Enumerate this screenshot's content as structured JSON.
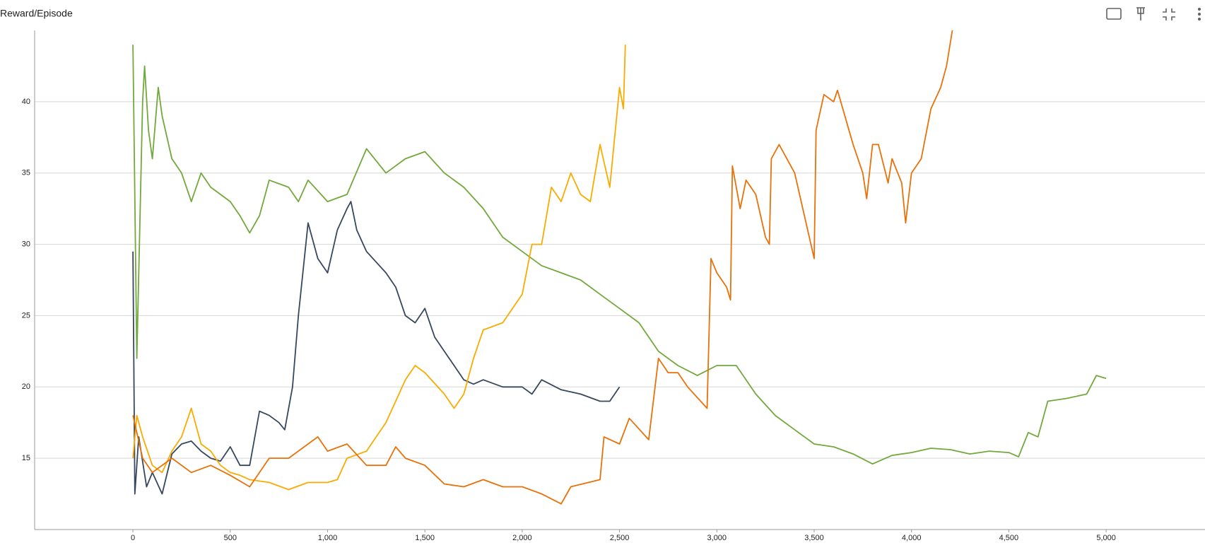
{
  "chart_data": {
    "type": "line",
    "title": "Reward/Episode",
    "xlim": [
      -505,
      5508
    ],
    "ylim": [
      10,
      45
    ],
    "xticks": [
      0,
      500,
      {
        "value": 1000,
        "label": "1,000"
      },
      {
        "value": 1500,
        "label": "1,500"
      },
      {
        "value": 2000,
        "label": "2,000"
      },
      {
        "value": 2500,
        "label": "2,500"
      },
      {
        "value": 3000,
        "label": "3,000"
      },
      {
        "value": 3500,
        "label": "3,500"
      },
      {
        "value": 4000,
        "label": "4,000"
      },
      {
        "value": 4500,
        "label": "4,500"
      },
      {
        "value": 5000,
        "label": "5,000"
      }
    ],
    "yticks": [
      15,
      20,
      25,
      30,
      35,
      40
    ],
    "grid": true,
    "series": [
      {
        "color": "#72a83c",
        "x": [
          0,
          20,
          50,
          60,
          80,
          100,
          130,
          150,
          200,
          250,
          300,
          350,
          400,
          500,
          550,
          600,
          650,
          700,
          800,
          850,
          900,
          1000,
          1100,
          1200,
          1300,
          1400,
          1500,
          1600,
          1700,
          1800,
          1900,
          2000,
          2100,
          2200,
          2300,
          2400,
          2500,
          2600,
          2700,
          2800,
          2900,
          3000,
          3100,
          3200,
          3300,
          3400,
          3500,
          3600,
          3700,
          3800,
          3900,
          4000,
          4100,
          4200,
          4300,
          4400,
          4500,
          4550,
          4600,
          4650,
          4700,
          4800,
          4900,
          4950,
          5000
        ],
        "values": [
          44,
          22,
          40,
          42.5,
          38,
          36,
          41,
          39,
          36,
          35,
          33,
          35,
          34,
          33,
          32,
          30.8,
          32,
          34.5,
          34,
          33,
          34.5,
          33,
          33.5,
          36.7,
          35,
          36,
          36.5,
          35,
          34,
          32.5,
          30.5,
          29.5,
          28.5,
          28,
          27.5,
          26.5,
          25.5,
          24.5,
          22.5,
          21.5,
          20.8,
          21.5,
          21.5,
          19.5,
          18,
          17,
          16,
          15.8,
          15.3,
          14.6,
          15.2,
          15.4,
          15.7,
          15.6,
          15.3,
          15.5,
          15.4,
          15.1,
          16.8,
          16.5,
          19,
          19.2,
          19.5,
          20.8,
          20.6
        ]
      },
      {
        "color": "#37475e",
        "x": [
          0,
          10,
          30,
          70,
          100,
          150,
          200,
          250,
          300,
          350,
          400,
          450,
          500,
          550,
          600,
          650,
          700,
          750,
          780,
          820,
          850,
          900,
          950,
          1000,
          1050,
          1100,
          1120,
          1150,
          1200,
          1300,
          1350,
          1400,
          1450,
          1500,
          1550,
          1600,
          1650,
          1700,
          1750,
          1800,
          1900,
          2000,
          2050,
          2100,
          2200,
          2300,
          2400,
          2450,
          2500
        ],
        "values": [
          29.5,
          12.5,
          16.5,
          13,
          14,
          12.5,
          15.3,
          16,
          16.2,
          15.5,
          15,
          14.8,
          15.8,
          14.5,
          14.5,
          18.3,
          18,
          17.5,
          17,
          20,
          25,
          31.5,
          29,
          28,
          31,
          32.5,
          33,
          31,
          29.5,
          28,
          27,
          25,
          24.5,
          25.5,
          23.5,
          22.5,
          21.5,
          20.5,
          20.2,
          20.5,
          20,
          20,
          19.5,
          20.5,
          19.8,
          19.5,
          19,
          19,
          20
        ]
      },
      {
        "color": "#f9ab00",
        "x": [
          0,
          20,
          50,
          100,
          150,
          200,
          250,
          300,
          350,
          400,
          450,
          500,
          550,
          600,
          700,
          800,
          900,
          1000,
          1050,
          1100,
          1200,
          1250,
          1300,
          1350,
          1400,
          1450,
          1500,
          1600,
          1650,
          1700,
          1750,
          1800,
          1900,
          2000,
          2050,
          2100,
          2150,
          2200,
          2250,
          2300,
          2350,
          2400,
          2450,
          2500,
          2520,
          2530
        ],
        "values": [
          15,
          18,
          16.5,
          14.5,
          14,
          15.5,
          16.5,
          18.5,
          16,
          15.5,
          14.5,
          14,
          13.8,
          13.5,
          13.3,
          12.8,
          13.3,
          13.3,
          13.5,
          15,
          15.5,
          16.5,
          17.5,
          19,
          20.5,
          21.5,
          21,
          19.5,
          18.5,
          19.5,
          22,
          24,
          24.5,
          26.5,
          30,
          30,
          34,
          33,
          35,
          33.5,
          33,
          37,
          34,
          41,
          39.5,
          44
        ]
      },
      {
        "color": "#e8710a",
        "x": [
          0,
          50,
          100,
          200,
          300,
          400,
          500,
          600,
          700,
          800,
          900,
          950,
          1000,
          1100,
          1200,
          1300,
          1350,
          1400,
          1500,
          1600,
          1700,
          1800,
          1900,
          2000,
          2100,
          2200,
          2250,
          2400,
          2420,
          2500,
          2550,
          2650,
          2700,
          2750,
          2800,
          2850,
          2950,
          2970,
          3000,
          3050,
          3070,
          3080,
          3120,
          3150,
          3200,
          3250,
          3270,
          3280,
          3320,
          3400,
          3450,
          3500,
          3510,
          3550,
          3600,
          3620,
          3700,
          3750,
          3770,
          3800,
          3830,
          3880,
          3900,
          3950,
          3970,
          4000,
          4050,
          4100,
          4150,
          4180,
          4210
        ],
        "values": [
          18,
          15,
          14,
          15,
          14,
          14.5,
          13.8,
          13,
          15,
          15,
          16,
          16.5,
          15.5,
          16,
          14.5,
          14.5,
          15.8,
          15,
          14.5,
          13.2,
          13,
          13.5,
          13,
          13,
          12.5,
          11.8,
          13,
          13.5,
          16.5,
          16,
          17.8,
          16.3,
          22,
          21,
          21,
          20,
          18.5,
          29,
          28,
          27,
          26.1,
          35.5,
          32.5,
          34.5,
          33.5,
          30.5,
          30,
          36,
          37,
          35,
          32,
          29,
          38,
          40.5,
          40,
          40.8,
          37,
          35,
          33.2,
          37,
          37,
          34.3,
          36,
          34.3,
          31.5,
          35,
          36,
          39.5,
          41,
          42.5,
          45
        ]
      }
    ]
  }
}
